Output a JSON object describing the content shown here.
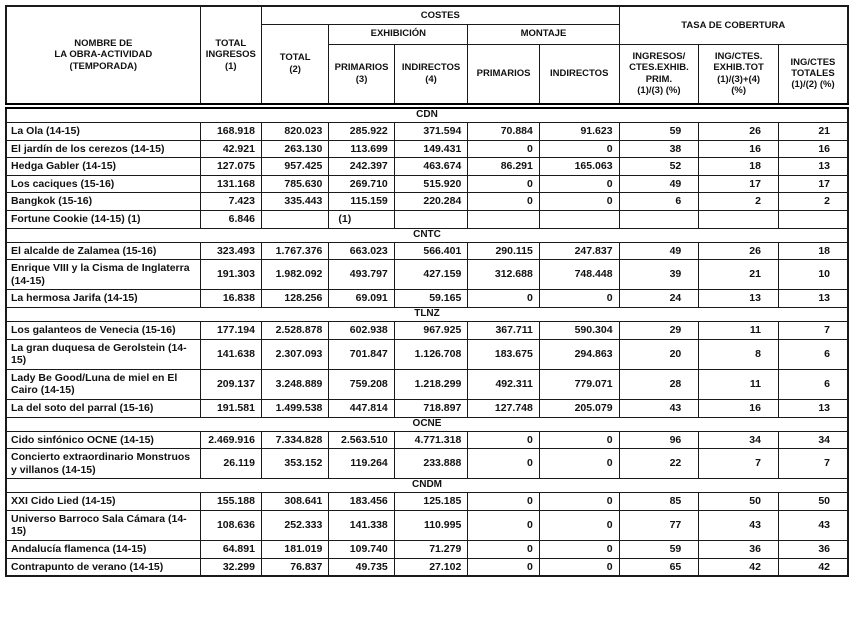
{
  "table": {
    "header": {
      "nombre": "NOMBRE DE\nLA OBRA-ACTIVIDAD\n(TEMPORADA)",
      "total_ingresos": "TOTAL\nINGRESOS\n(1)",
      "costes": "COSTES",
      "tasa_cobertura": "TASA DE COBERTURA",
      "total2": "TOTAL\n(2)",
      "exhibicion": "EXHIBICIÓN",
      "montaje": "MONTAJE",
      "primarios3": "PRIMARIOS\n(3)",
      "indirectos4": "INDIRECTOS\n(4)",
      "primarios_m": "PRIMARIOS",
      "indirectos_m": "INDIRECTOS",
      "tasa1": "INGRESOS/\nCTES.EXHIB.\nPRIM.\n(1)/(3)  (%)",
      "tasa2": "ING/CTES.\nEXHIB.TOT\n(1)/(3)+(4)\n(%)",
      "tasa3": "ING/CTES\nTOTALES\n(1)/(2) (%)"
    },
    "sections": [
      {
        "name": "CDN",
        "rows": [
          {
            "nombre": "La Ola (14-15)",
            "cells": [
              "168.918",
              "820.023",
              "285.922",
              "371.594",
              "70.884",
              "91.623",
              "59",
              "26",
              "21"
            ]
          },
          {
            "nombre": "El jardín de los cerezos  (14-15)",
            "cells": [
              "42.921",
              "263.130",
              "113.699",
              "149.431",
              "0",
              "0",
              "38",
              "16",
              "16"
            ]
          },
          {
            "nombre": "Hedga Gabler (14-15)",
            "cells": [
              "127.075",
              "957.425",
              "242.397",
              "463.674",
              "86.291",
              "165.063",
              "52",
              "18",
              "13"
            ]
          },
          {
            "nombre": "Los caciques (15-16)",
            "cells": [
              "131.168",
              "785.630",
              "269.710",
              "515.920",
              "0",
              "0",
              "49",
              "17",
              "17"
            ]
          },
          {
            "nombre": "Bangkok (15-16)",
            "cells": [
              "7.423",
              "335.443",
              "115.159",
              "220.284",
              "0",
              "0",
              "6",
              "2",
              "2"
            ]
          },
          {
            "nombre": "Fortune Cookie (14-15) (1)",
            "cells": [
              "6.846",
              "",
              "(1)",
              "",
              "",
              "",
              "",
              "",
              ""
            ]
          }
        ]
      },
      {
        "name": "CNTC",
        "rows": [
          {
            "nombre": "El alcalde de Zalamea  (15-16)",
            "cells": [
              "323.493",
              "1.767.376",
              "663.023",
              "566.401",
              "290.115",
              "247.837",
              "49",
              "26",
              "18"
            ]
          },
          {
            "nombre": "Enrique VIII y la Cisma de Inglaterra (14-15)",
            "cells": [
              "191.303",
              "1.982.092",
              "493.797",
              "427.159",
              "312.688",
              "748.448",
              "39",
              "21",
              "10"
            ]
          },
          {
            "nombre": "La hermosa Jarifa (14-15)",
            "cells": [
              "16.838",
              "128.256",
              "69.091",
              "59.165",
              "0",
              "0",
              "24",
              "13",
              "13"
            ]
          }
        ]
      },
      {
        "name": "TLNZ",
        "rows": [
          {
            "nombre": "Los galanteos de Venecia  (15-16)",
            "cells": [
              "177.194",
              "2.528.878",
              "602.938",
              "967.925",
              "367.711",
              "590.304",
              "29",
              "11",
              "7"
            ]
          },
          {
            "nombre": "La gran duquesa de Gerolstein (14-15)",
            "cells": [
              "141.638",
              "2.307.093",
              "701.847",
              "1.126.708",
              "183.675",
              "294.863",
              "20",
              "8",
              "6"
            ]
          },
          {
            "nombre": "Lady Be Good/Luna de miel en El Cairo (14-15)",
            "cells": [
              "209.137",
              "3.248.889",
              "759.208",
              "1.218.299",
              "492.311",
              "779.071",
              "28",
              "11",
              "6"
            ]
          },
          {
            "nombre": "La del soto del parral  (15-16)",
            "cells": [
              "191.581",
              "1.499.538",
              "447.814",
              "718.897",
              "127.748",
              "205.079",
              "43",
              "16",
              "13"
            ]
          }
        ]
      },
      {
        "name": "OCNE",
        "rows": [
          {
            "nombre": "Cido sinfónico OCNE  (14-15)",
            "cells": [
              "2.469.916",
              "7.334.828",
              "2.563.510",
              "4.771.318",
              "0",
              "0",
              "96",
              "34",
              "34"
            ]
          },
          {
            "nombre": "Concierto extraordinario Monstruos y villanos  (14-15)",
            "cells": [
              "26.119",
              "353.152",
              "119.264",
              "233.888",
              "0",
              "0",
              "22",
              "7",
              "7"
            ]
          }
        ]
      },
      {
        "name": "CNDM",
        "rows": [
          {
            "nombre": "XXI Cido Lied (14-15)",
            "cells": [
              "155.188",
              "308.641",
              "183.456",
              "125.185",
              "0",
              "0",
              "85",
              "50",
              "50"
            ]
          },
          {
            "nombre": "Universo Barroco Sala Cámara (14-15)",
            "cells": [
              "108.636",
              "252.333",
              "141.338",
              "110.995",
              "0",
              "0",
              "77",
              "43",
              "43"
            ]
          },
          {
            "nombre": "Andalucía flamenca  (14-15)",
            "cells": [
              "64.891",
              "181.019",
              "109.740",
              "71.279",
              "0",
              "0",
              "59",
              "36",
              "36"
            ]
          },
          {
            "nombre": "Contrapunto de verano  (14-15)",
            "cells": [
              "32.299",
              "76.837",
              "49.735",
              "27.102",
              "0",
              "0",
              "65",
              "42",
              "42"
            ]
          }
        ]
      }
    ]
  }
}
